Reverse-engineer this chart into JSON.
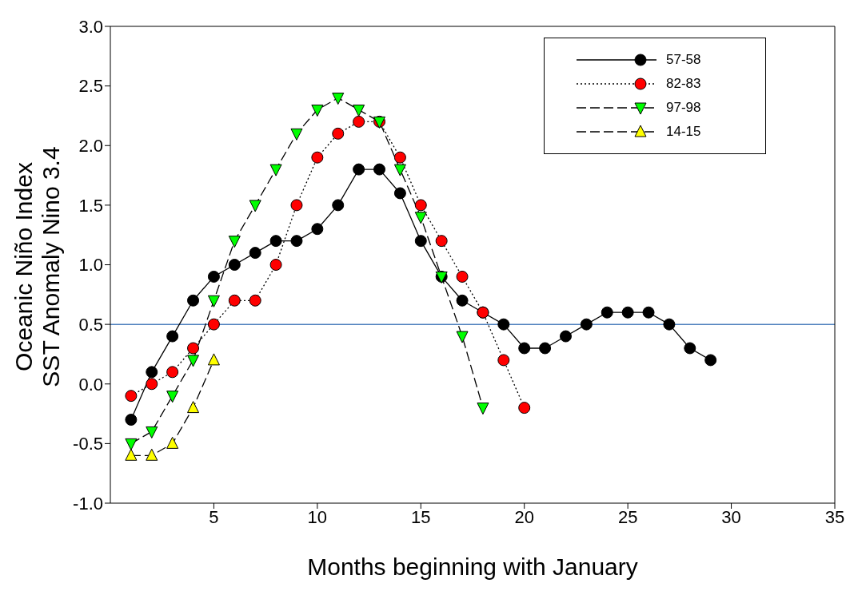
{
  "chart_data": {
    "type": "line",
    "xlabel": "Months beginning with January",
    "ylabel": "Oceanic Niño Index\nSST Anomaly Nino 3.4",
    "xlim": [
      0,
      35
    ],
    "xticks": [
      5,
      10,
      15,
      20,
      25,
      30,
      35
    ],
    "ylim": [
      -1,
      3
    ],
    "yticks": [
      {
        "value": -1,
        "label": "-1.0"
      },
      -0.5,
      {
        "value": 0,
        "label": "0.0"
      },
      0.5,
      {
        "value": 1,
        "label": "1.0"
      },
      1.5,
      {
        "value": 2,
        "label": "2.0"
      },
      2.5,
      {
        "value": 3,
        "label": "3.0"
      }
    ],
    "grid": false,
    "legend": "top right",
    "ref_lines": [
      {
        "axis": "y",
        "value": 0.5,
        "color": "#4f81bd"
      }
    ],
    "series": [
      {
        "name": "57-58",
        "color": "#000000",
        "marker": "circle",
        "line_style": "solid",
        "x": [
          1,
          2,
          3,
          4,
          5,
          6,
          7,
          8,
          9,
          10,
          11,
          12,
          13,
          14,
          15,
          16,
          17,
          18,
          19,
          20,
          21,
          22,
          23,
          24,
          25,
          26,
          27,
          28,
          29
        ],
        "values": [
          -0.3,
          0.1,
          0.4,
          0.7,
          0.9,
          1.0,
          1.1,
          1.2,
          1.2,
          1.3,
          1.5,
          1.8,
          1.8,
          1.6,
          1.2,
          0.9,
          0.7,
          0.6,
          0.5,
          0.3,
          0.3,
          0.4,
          0.5,
          0.6,
          0.6,
          0.6,
          0.5,
          0.3,
          0.2
        ]
      },
      {
        "name": "82-83",
        "color": "#ff0000",
        "marker": "circle",
        "line_style": "dotted",
        "x": [
          1,
          2,
          3,
          4,
          5,
          6,
          7,
          8,
          9,
          10,
          11,
          12,
          13,
          14,
          15,
          16,
          17,
          18,
          19,
          20
        ],
        "values": [
          -0.1,
          0.0,
          0.1,
          0.3,
          0.5,
          0.7,
          0.7,
          1.0,
          1.5,
          1.9,
          2.1,
          2.2,
          2.2,
          1.9,
          1.5,
          1.2,
          0.9,
          0.6,
          0.2,
          -0.2
        ]
      },
      {
        "name": "97-98",
        "color": "#00ff00",
        "marker": "triangle-down",
        "line_style": "dashed",
        "x": [
          1,
          2,
          3,
          4,
          5,
          6,
          7,
          8,
          9,
          10,
          11,
          12,
          13,
          14,
          15,
          16,
          17,
          18
        ],
        "values": [
          -0.5,
          -0.4,
          -0.1,
          0.2,
          0.7,
          1.2,
          1.5,
          1.8,
          2.1,
          2.3,
          2.4,
          2.3,
          2.2,
          1.8,
          1.4,
          0.9,
          0.4,
          -0.2
        ]
      },
      {
        "name": "14-15",
        "color": "#ffff00",
        "marker": "triangle",
        "line_style": "dashed",
        "x": [
          1,
          2,
          3,
          4,
          5
        ],
        "values": [
          -0.6,
          -0.6,
          -0.5,
          -0.2,
          0.2
        ]
      }
    ]
  }
}
